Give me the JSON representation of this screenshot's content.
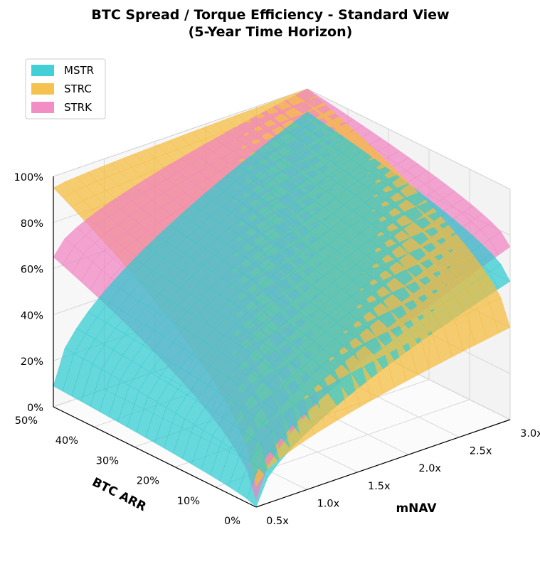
{
  "chart_data": {
    "type": "surface3d",
    "title_lines": [
      "BTC Spread / Torque Efficiency - Standard View",
      "(5-Year Time Horizon)"
    ],
    "xlabel": "mNAV",
    "ylabel": "BTC ARR",
    "x_range": [
      0.5,
      3.0
    ],
    "y_range": [
      0,
      50
    ],
    "z_range": [
      0,
      100
    ],
    "x_ticks": [
      "0.5x",
      "1.0x",
      "1.5x",
      "2.0x",
      "2.5x",
      "3.0x"
    ],
    "y_ticks": [
      "0%",
      "10%",
      "20%",
      "30%",
      "40%",
      "50%"
    ],
    "z_ticks": [
      "0%",
      "20%",
      "40%",
      "60%",
      "80%",
      "100%"
    ],
    "legend_position": "top-left",
    "grid": true,
    "series": [
      {
        "name": "MSTR",
        "color": "#2ECAD0",
        "corner_values": {
          "mnav_0.5_arr_0": 0,
          "mnav_0.5_arr_50": 9,
          "mnav_3.0_arr_0": 60,
          "mnav_3.0_arr_50": 90
        }
      },
      {
        "name": "STRC",
        "color": "#F5BB3C",
        "corner_values": {
          "mnav_0.5_arr_0": 9,
          "mnav_0.5_arr_50": 95,
          "mnav_3.0_arr_0": 40,
          "mnav_3.0_arr_50": 100
        }
      },
      {
        "name": "STRK",
        "color": "#F082C0",
        "corner_values": {
          "mnav_0.5_arr_0": 3,
          "mnav_0.5_arr_50": 65,
          "mnav_3.0_arr_0": 75,
          "mnav_3.0_arr_50": 100
        }
      }
    ]
  }
}
